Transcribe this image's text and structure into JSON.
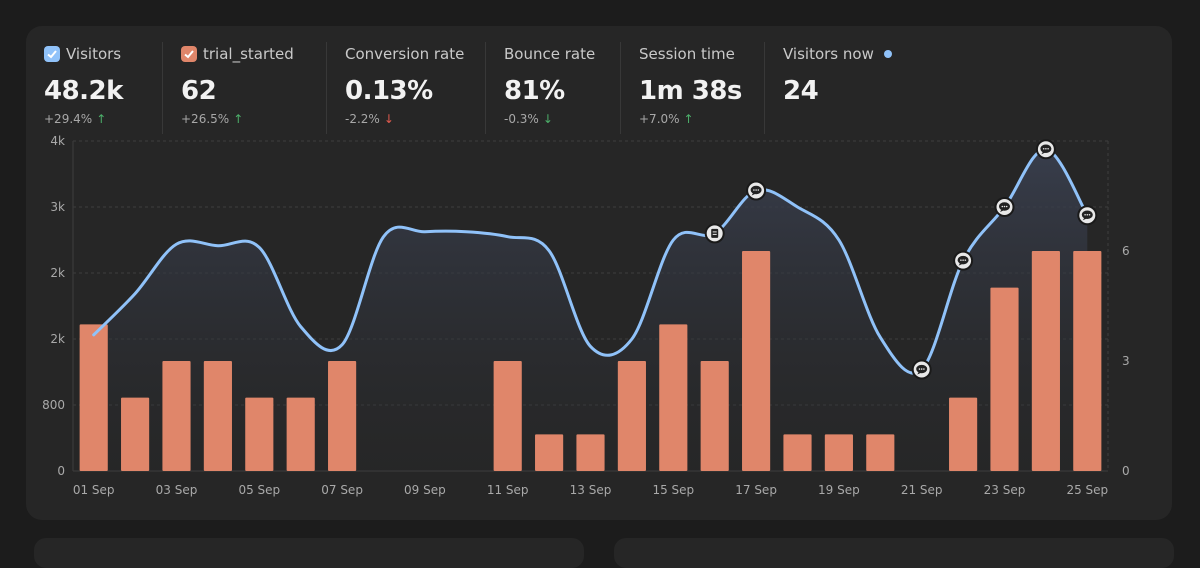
{
  "stats": [
    {
      "label": "Visitors",
      "value": "48.2k",
      "change": "+29.4%",
      "dir": "up",
      "checkbox": "blue"
    },
    {
      "label": "trial_started",
      "value": "62",
      "change": "+26.5%",
      "dir": "up",
      "checkbox": "orange"
    },
    {
      "label": "Conversion rate",
      "value": "0.13%",
      "change": "-2.2%",
      "dir": "down-bad"
    },
    {
      "label": "Bounce rate",
      "value": "81%",
      "change": "-0.3%",
      "dir": "down-good"
    },
    {
      "label": "Session time",
      "value": "1m 38s",
      "change": "+7.0%",
      "dir": "up"
    },
    {
      "label": "Visitors now",
      "value": "24",
      "live_dot": true
    }
  ],
  "colors": {
    "visitors": "#90c2f9",
    "trial": "#e0866a",
    "up": "#4caf6a",
    "down_bad": "#e05a4e",
    "down_good": "#4caf6a",
    "grid": "#3d3d3d",
    "axis_text": "#a9a9a9",
    "card": "#262626"
  },
  "chart_data": {
    "type": "bar+line",
    "x": [
      "01 Sep",
      "02 Sep",
      "03 Sep",
      "04 Sep",
      "05 Sep",
      "06 Sep",
      "07 Sep",
      "08 Sep",
      "09 Sep",
      "10 Sep",
      "11 Sep",
      "12 Sep",
      "13 Sep",
      "14 Sep",
      "15 Sep",
      "16 Sep",
      "17 Sep",
      "18 Sep",
      "19 Sep",
      "20 Sep",
      "21 Sep",
      "22 Sep",
      "23 Sep",
      "24 Sep",
      "25 Sep"
    ],
    "x_tick_labels": [
      "01 Sep",
      "03 Sep",
      "05 Sep",
      "07 Sep",
      "09 Sep",
      "11 Sep",
      "13 Sep",
      "15 Sep",
      "17 Sep",
      "19 Sep",
      "21 Sep",
      "23 Sep",
      "25 Sep"
    ],
    "left_axis": {
      "ticks": [
        "0",
        "800",
        "2k",
        "2k",
        "3k",
        "4k"
      ],
      "range": [
        0,
        4000
      ]
    },
    "right_axis": {
      "ticks": [
        "0",
        "3",
        "6"
      ],
      "range": [
        0,
        9
      ]
    },
    "series": [
      {
        "name": "Visitors",
        "type": "line",
        "axis": "left",
        "values": [
          1650,
          2150,
          2750,
          2730,
          2710,
          1750,
          1530,
          2840,
          2900,
          2900,
          2840,
          2670,
          1510,
          1600,
          2800,
          2880,
          3400,
          3200,
          2800,
          1620,
          1230,
          2550,
          3200,
          3900,
          3100
        ]
      },
      {
        "name": "trial_started",
        "type": "bar",
        "axis": "right",
        "values": [
          4,
          2,
          3,
          3,
          2,
          2,
          3,
          0,
          0,
          0,
          3,
          1,
          1,
          3,
          4,
          3,
          6,
          1,
          1,
          1,
          0,
          2,
          5,
          6,
          6
        ]
      }
    ],
    "annotations": [
      {
        "x": "16 Sep",
        "icon": "note-icon"
      },
      {
        "x": "17 Sep",
        "icon": "comment-icon"
      },
      {
        "x": "21 Sep",
        "icon": "comment-icon"
      },
      {
        "x": "22 Sep",
        "icon": "comment-icon"
      },
      {
        "x": "23 Sep",
        "icon": "comment-icon"
      },
      {
        "x": "24 Sep",
        "icon": "comment-icon"
      },
      {
        "x": "25 Sep",
        "icon": "comment-icon"
      }
    ],
    "grid": true
  }
}
